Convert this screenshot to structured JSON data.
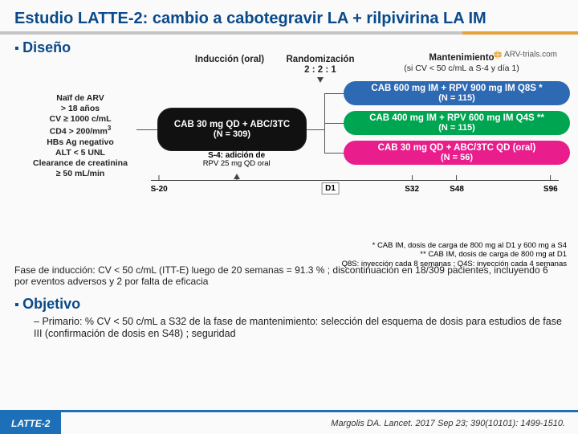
{
  "title": "Estudio LATTE-2: cambio a cabotegravir LA + rilpivirina LA IM",
  "logo_text": "ARV-trials.com",
  "design_h": "Diseño",
  "headers": {
    "induction": "Inducción (oral)",
    "randomization": "Randomización",
    "rand_ratio": "2 : 2 : 1",
    "maintenance": "Mantenimiento",
    "maint_sub": "(si CV < 50 c/mL a S-4 y día 1)"
  },
  "inclusion": "Naïf de ARV\n> 18 años\nCV ≥ 1000 c/mL\nCD4 > 200/mm³\nHBs Ag negativo\nALT < 5 UNL\nClearance de creatinina\n≥ 50 mL/min",
  "induction_box": {
    "main": "CAB 30 mg QD + ABC/3TC",
    "sub": "(N = 309)"
  },
  "arms": {
    "a1": {
      "main": "CAB 600 mg IM + RPV 900 mg IM Q8S *",
      "sub": "(N = 115)",
      "color": "#2e69b3"
    },
    "a2": {
      "main": "CAB 400 mg IM + RPV 600 mg IM Q4S **",
      "sub": "(N = 115)",
      "color": "#00a551"
    },
    "a3": {
      "main": "CAB 30 mg QD + ABC/3TC QD (oral)",
      "sub": "(N = 56)",
      "color": "#e91e8c"
    }
  },
  "timeline": {
    "ticks": [
      {
        "label": "S-20",
        "pct": 2
      },
      {
        "label": "",
        "pct": 21,
        "s4": true
      },
      {
        "label": "",
        "pct": 44,
        "d1": true
      },
      {
        "label": "S32",
        "pct": 64
      },
      {
        "label": "S48",
        "pct": 75
      },
      {
        "label": "S96",
        "pct": 98
      }
    ],
    "s4_label": "S-4: adición de",
    "s4_sub": "RPV 25 mg QD oral",
    "d1_label": "D1"
  },
  "footnotes": {
    "l1": "* CAB IM, dosis de carga de 800 mg al D1 y 600 mg a S4",
    "l2": "** CAB IM, dosis de carga de 800 mg at D1",
    "l3": "Q8S: inyección cada 8 semanas ; Q4S: inyección cada 4 semanas"
  },
  "phase_note": "Fase de inducción: CV < 50 c/mL (ITT-E) luego de 20 semanas = 91.3 % ; discontinuación en 18/309 pacientes, incluyendo 6 por eventos adversos y 2 por falta de eficacia",
  "objective_h": "Objetivo",
  "objective_primary": "Primario: % CV < 50 c/mL a S32 de la fase de mantenimiento: selección del esquema de dosis para estudios de fase III (confirmación de dosis en S48) ; seguridad",
  "footer_tag": "LATTE-2",
  "reference": "Margolis DA. Lancet. 2017 Sep 23; 390(10101): 1499-1510.",
  "colors": {
    "title": "#0a4a8a",
    "accent": "#1d6fb7",
    "rule_orange": "#e7a33b"
  }
}
